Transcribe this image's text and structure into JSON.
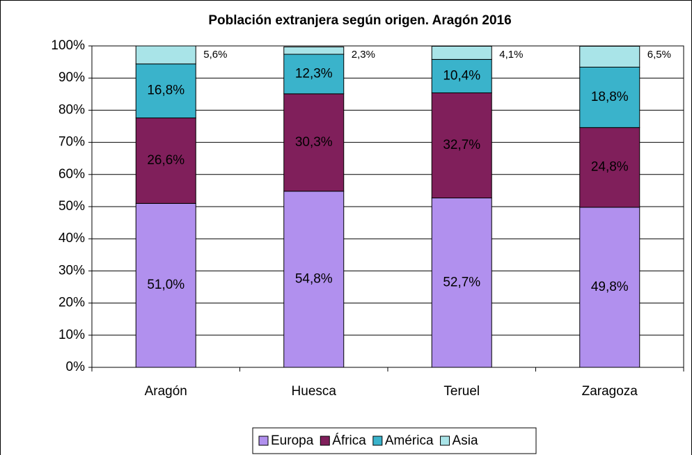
{
  "chart_data": {
    "type": "bar",
    "stacked": true,
    "title": "Población extranjera según origen. Aragón 2016",
    "categories": [
      "Aragón",
      "Huesca",
      "Teruel",
      "Zaragoza"
    ],
    "series": [
      {
        "name": "Europa",
        "color": "#b190ee",
        "values": [
          51.0,
          54.8,
          52.7,
          49.8
        ],
        "value_labels": [
          "51,0%",
          "54,8%",
          "52,7%",
          "49,8%"
        ]
      },
      {
        "name": "África",
        "color": "#801f5b",
        "values": [
          26.6,
          30.3,
          32.7,
          24.8
        ],
        "value_labels": [
          "26,6%",
          "30,3%",
          "32,7%",
          "24,8%"
        ]
      },
      {
        "name": "América",
        "color": "#3ab3cb",
        "values": [
          16.8,
          12.3,
          10.4,
          18.8
        ],
        "value_labels": [
          "16,8%",
          "12,3%",
          "10,4%",
          "18,8%"
        ]
      },
      {
        "name": "Asia",
        "color": "#a9e4e8",
        "values": [
          5.6,
          2.3,
          4.1,
          6.5
        ],
        "value_labels": [
          "5,6%",
          "2,3%",
          "4,1%",
          "6,5%"
        ]
      }
    ],
    "ylim": [
      0,
      100
    ],
    "yticks": [
      {
        "value": 0,
        "label": "0%"
      },
      {
        "value": 10,
        "label": "10%"
      },
      {
        "value": 20,
        "label": "20%"
      },
      {
        "value": 30,
        "label": "30%"
      },
      {
        "value": 40,
        "label": "40%"
      },
      {
        "value": 50,
        "label": "50%"
      },
      {
        "value": 60,
        "label": "60%"
      },
      {
        "value": 70,
        "label": "70%"
      },
      {
        "value": 80,
        "label": "80%"
      },
      {
        "value": 90,
        "label": "90%"
      },
      {
        "value": 100,
        "label": "100%"
      }
    ],
    "grid": true,
    "legend": "bottom"
  }
}
